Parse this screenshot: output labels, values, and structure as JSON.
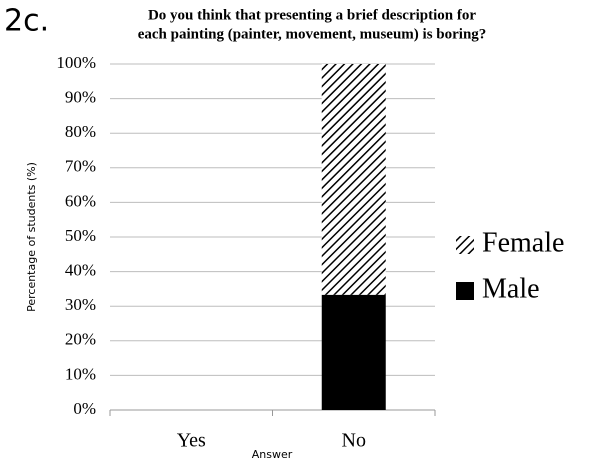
{
  "chart_data": {
    "type": "stacked_bar",
    "panel_label": "2c.",
    "title": [
      "Do you think that presenting a brief description for",
      "each painting (painter, movement,  museum) is boring?"
    ],
    "x_label": "Answer",
    "y_label": "Percentage of students (%)",
    "categories": [
      "Yes",
      "No"
    ],
    "series": [
      {
        "name": "Male",
        "color": "#000000",
        "hatch": false,
        "values": [
          0,
          33.3
        ]
      },
      {
        "name": "Female",
        "color": "#000000",
        "hatch": true,
        "values": [
          0,
          66.7
        ]
      }
    ],
    "ylim": [
      0,
      100
    ],
    "yticks": [
      {
        "value": 0,
        "label": "0%"
      },
      {
        "value": 10,
        "label": "10%"
      },
      {
        "value": 20,
        "label": "20%"
      },
      {
        "value": 30,
        "label": "30%"
      },
      {
        "value": 40,
        "label": "40%"
      },
      {
        "value": 50,
        "label": "50%"
      },
      {
        "value": 60,
        "label": "60%"
      },
      {
        "value": 70,
        "label": "70%"
      },
      {
        "value": 80,
        "label": "80%"
      },
      {
        "value": 90,
        "label": "90%"
      },
      {
        "value": 100,
        "label": "100%"
      }
    ],
    "grid": true,
    "legend": "right"
  }
}
